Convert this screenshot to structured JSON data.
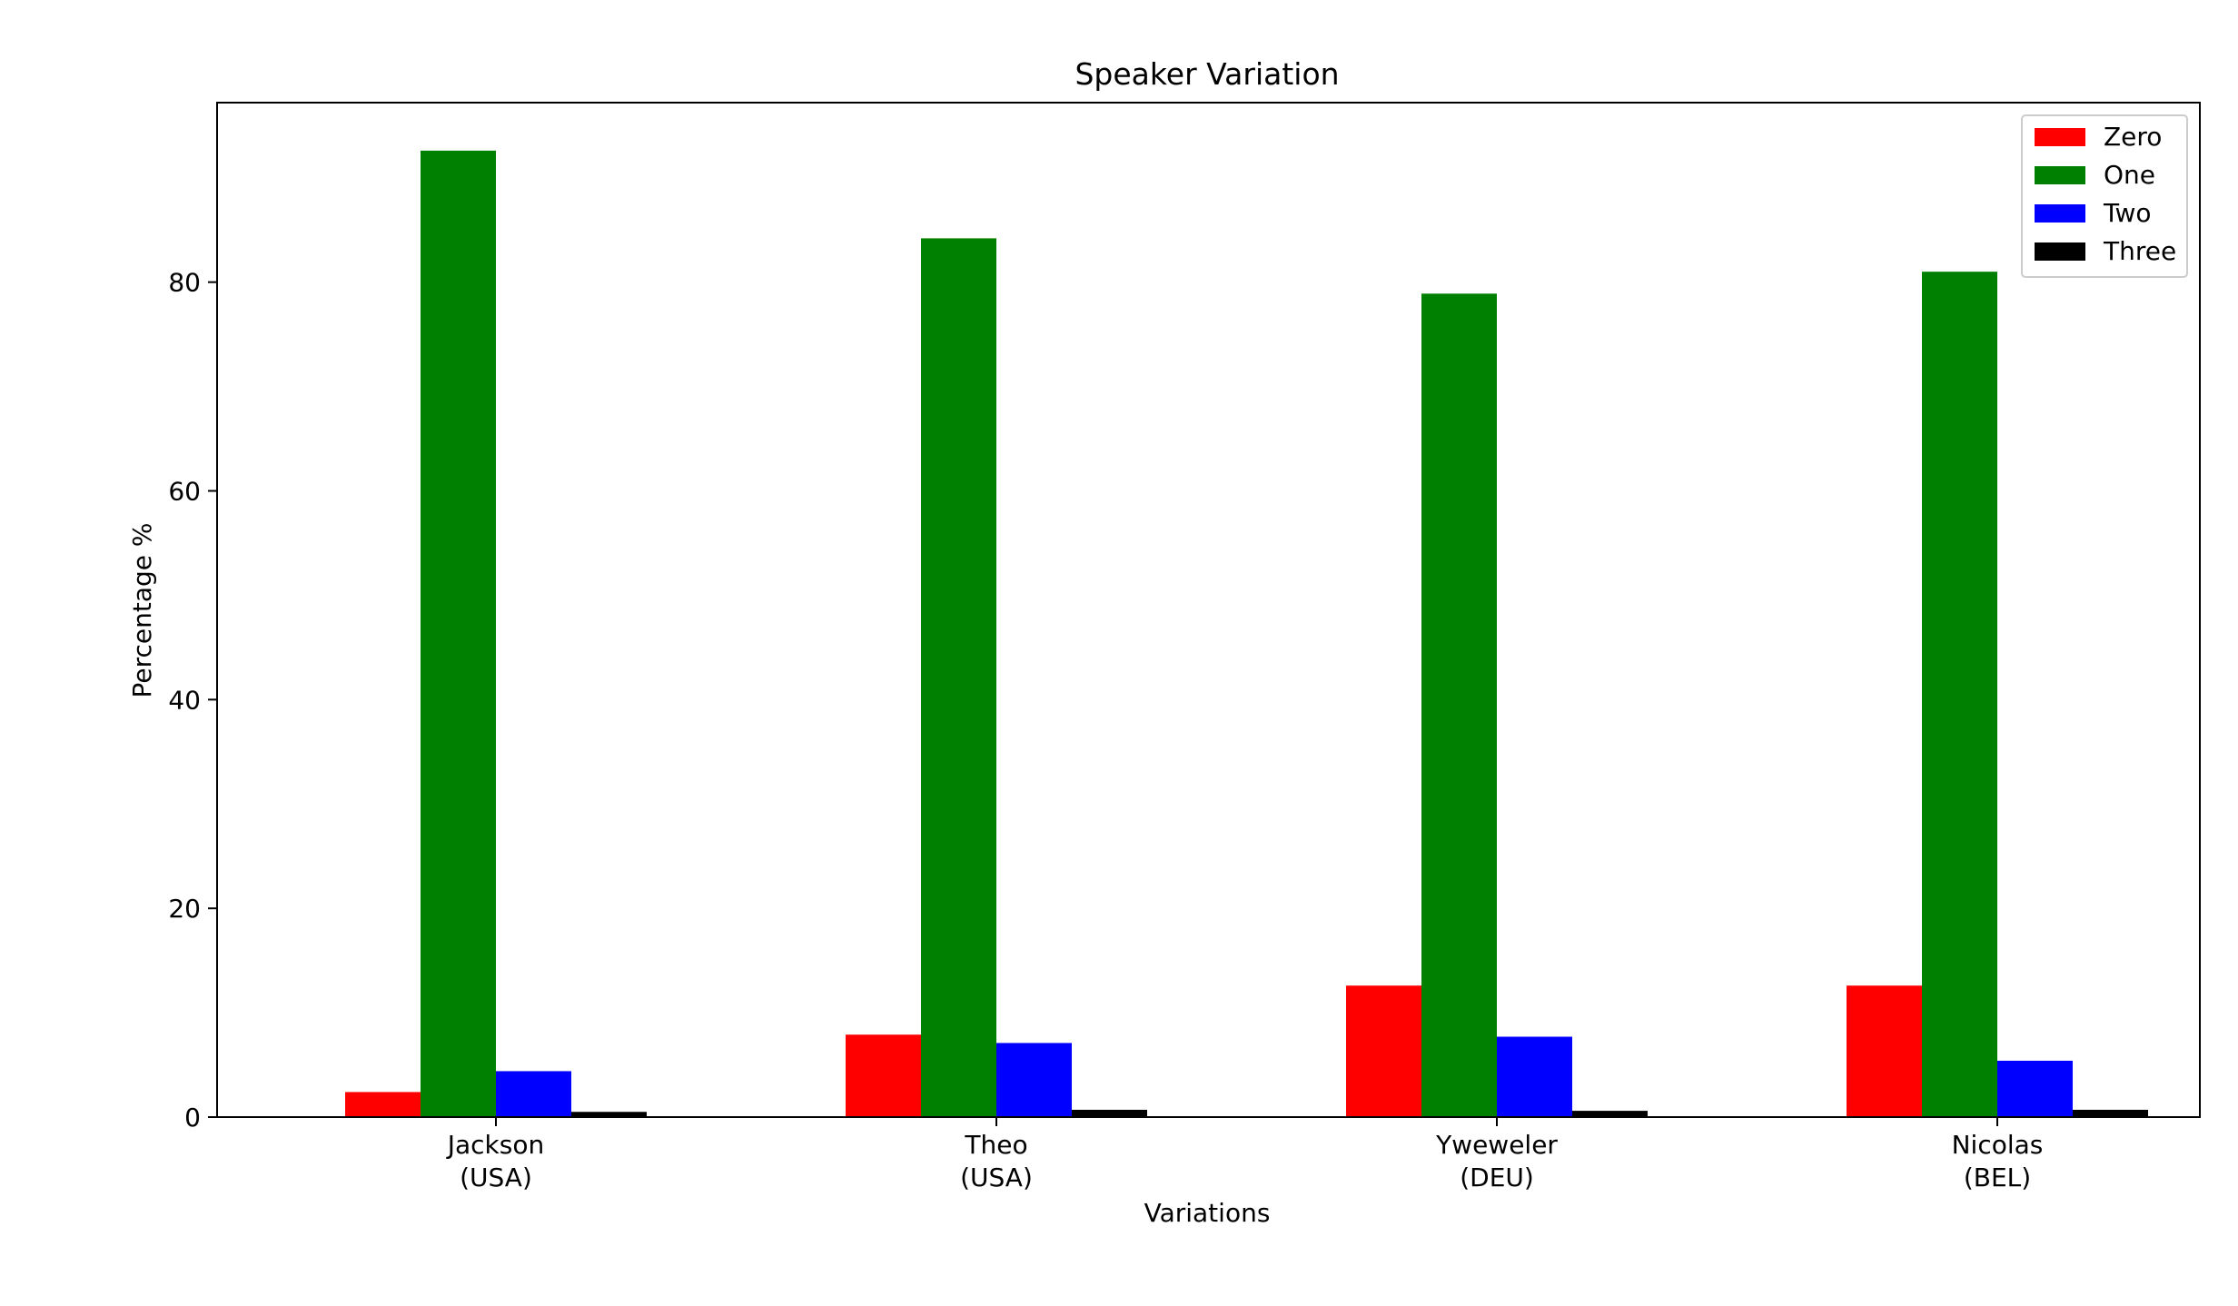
{
  "chart_data": {
    "type": "bar",
    "title": "Speaker Variation",
    "xlabel": "Variations",
    "ylabel": "Percentage %",
    "categories": [
      {
        "line1": "Jackson",
        "line2": "(USA)"
      },
      {
        "line1": "Theo",
        "line2": "(USA)"
      },
      {
        "line1": "Yweweler",
        "line2": "(DEU)"
      },
      {
        "line1": "Nicolas",
        "line2": "(BEL)"
      }
    ],
    "series": [
      {
        "name": "Zero",
        "color": "#ff0000",
        "values": [
          2.4,
          7.9,
          12.6,
          12.6
        ]
      },
      {
        "name": "One",
        "color": "#008000",
        "values": [
          92.6,
          84.2,
          78.9,
          81.0
        ]
      },
      {
        "name": "Two",
        "color": "#0000ff",
        "values": [
          4.4,
          7.1,
          7.7,
          5.4
        ]
      },
      {
        "name": "Three",
        "color": "#000000",
        "values": [
          0.5,
          0.7,
          0.6,
          0.7
        ]
      }
    ],
    "ylim": [
      0,
      97.2
    ],
    "yticks": [
      0,
      20,
      40,
      60,
      80
    ],
    "grid": false,
    "legend": "top-right"
  }
}
